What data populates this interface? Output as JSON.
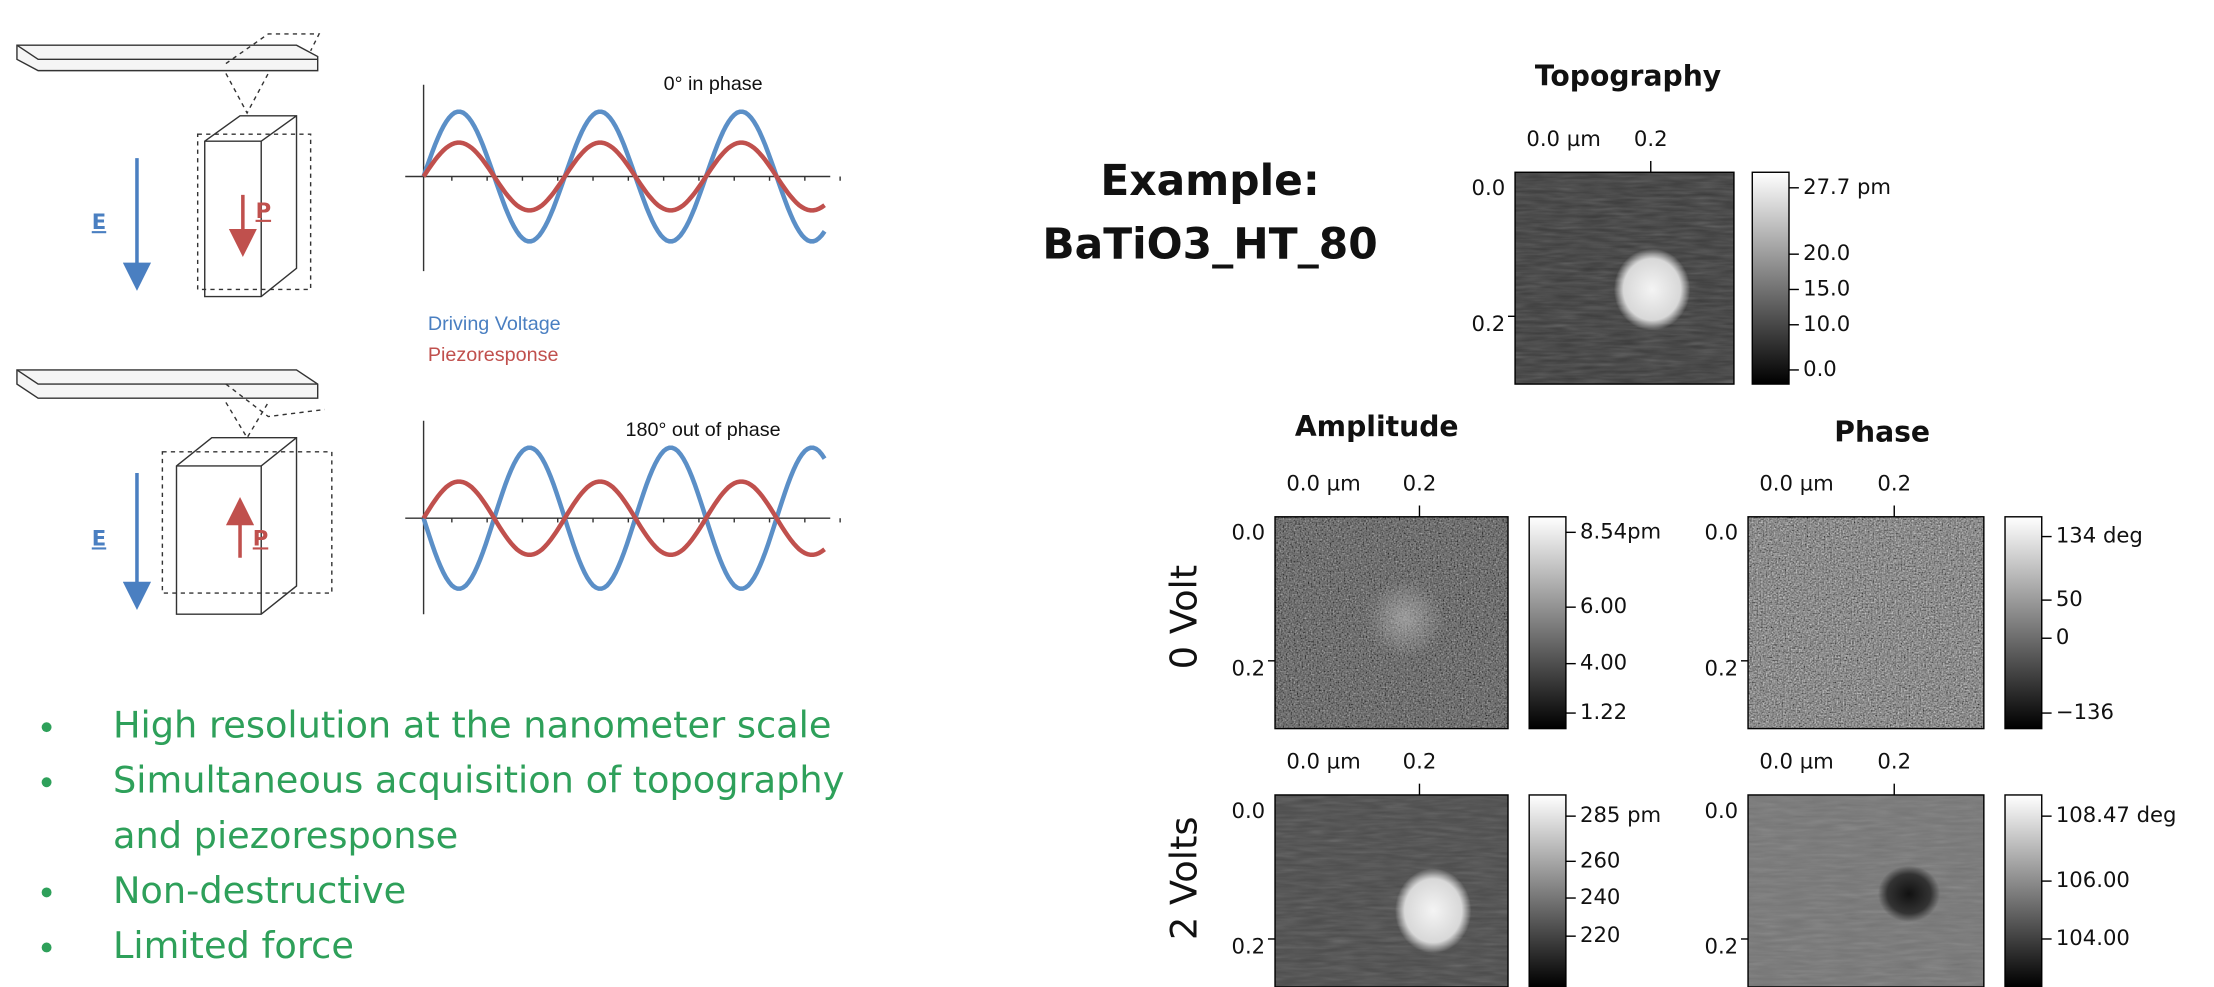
{
  "diagram": {
    "panels": [
      {
        "field": "E",
        "polarization": "P",
        "wave_label": "0° in phase"
      },
      {
        "field": "E",
        "polarization": "P",
        "wave_label": "180° out of phase"
      }
    ],
    "legend": [
      "Driving Voltage",
      "Piezoresponse"
    ]
  },
  "bullets": [
    {
      "lines": [
        "High resolution at the nanometer scale"
      ]
    },
    {
      "lines": [
        "Simultaneous acquisition of topography",
        "and piezoresponse"
      ]
    },
    {
      "lines": [
        "Non-destructive"
      ]
    },
    {
      "lines": [
        "Limited force"
      ]
    }
  ],
  "example": {
    "label": "Example:",
    "sample": "BaTiO3_HT_80"
  },
  "topography": {
    "title": "Topography",
    "x_ticks": [
      "0.0 µm",
      "0.2"
    ],
    "y_ticks": [
      "0.0",
      "0.2"
    ],
    "colorbar": [
      "27.7 pm",
      "20.0",
      "15.0",
      "10.0",
      "0.0"
    ]
  },
  "columns": [
    "Amplitude",
    "Phase"
  ],
  "rows": [
    {
      "label": "0 Volt",
      "amplitude": {
        "x_ticks": [
          "0.0 µm",
          "0.2"
        ],
        "y_ticks": [
          "0.0",
          "0.2"
        ],
        "colorbar": [
          "8.54pm",
          "6.00",
          "4.00",
          "1.22"
        ]
      },
      "phase": {
        "x_ticks": [
          "0.0 µm",
          "0.2"
        ],
        "y_ticks": [
          "0.0",
          "0.2"
        ],
        "colorbar": [
          "134 deg",
          "50",
          "0",
          "−136"
        ]
      }
    },
    {
      "label": "2 Volts",
      "amplitude": {
        "x_ticks": [
          "0.0 µm",
          "0.2"
        ],
        "y_ticks": [
          "0.0",
          "0.2"
        ],
        "colorbar": [
          "285 pm",
          "260",
          "240",
          "220"
        ]
      },
      "phase": {
        "x_ticks": [
          "0.0 µm",
          "0.2"
        ],
        "y_ticks": [
          "0.0",
          "0.2"
        ],
        "colorbar": [
          "108.47 deg",
          "106.00",
          "104.00"
        ]
      }
    }
  ]
}
